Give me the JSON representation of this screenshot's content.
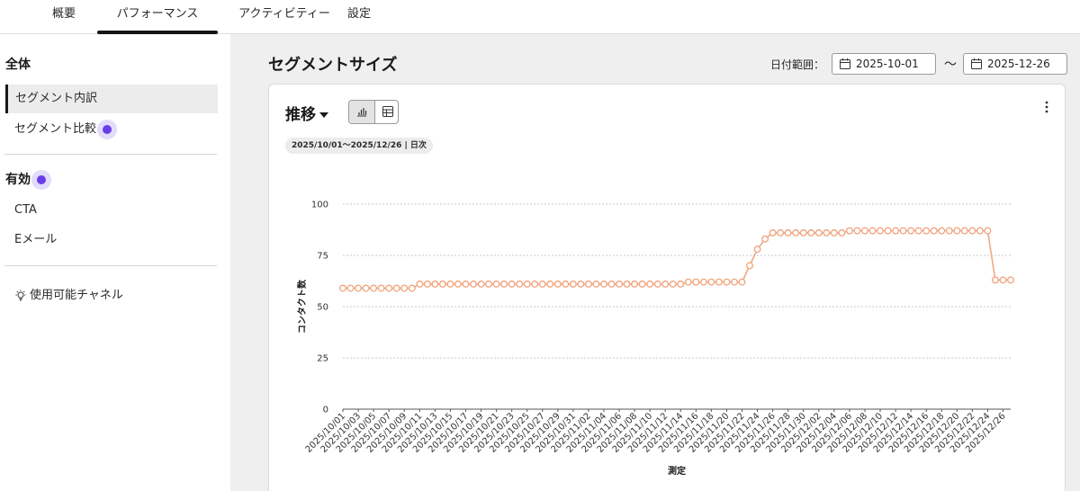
{
  "tabs": [
    {
      "label": "概要",
      "active": false
    },
    {
      "label": "パフォーマンス",
      "active": true
    },
    {
      "label": "アクティビティー",
      "active": false
    },
    {
      "label": "設定",
      "active": false
    }
  ],
  "sidebar": {
    "section_all": "全体",
    "item_breakdown": "セグメント内訳",
    "item_compare": "セグメント比較",
    "section_active": "有効",
    "item_cta": "CTA",
    "item_email": "Eメール",
    "item_channels": "使用可能チャネル"
  },
  "main": {
    "title": "セグメントサイズ",
    "date_range_label": "日付範囲：",
    "date_from": "2025-10-01",
    "date_separator": "〜",
    "date_to": "2025-12-26"
  },
  "card": {
    "title": "推移",
    "range_chip": "2025/10/01〜2025/12/26 | 日次"
  },
  "icons": {
    "calendar": "calendar-icon",
    "chart_view": "line-chart-icon",
    "table_view": "table-icon",
    "more": "more-vertical-icon",
    "bulb": "lightbulb-icon"
  },
  "colors": {
    "series": "#f0a882",
    "badge": "#6a3ce8",
    "badge_halo": "#e2dbfb"
  },
  "chart_data": {
    "type": "line",
    "xlabel": "測定",
    "ylabel": "コンタクト数",
    "ylim": [
      0,
      100
    ],
    "yticks": [
      0,
      25,
      50,
      75,
      100
    ],
    "grid": true,
    "x_tick_labels": [
      "2025/10/01",
      "2025/10/03",
      "2025/10/05",
      "2025/10/07",
      "2025/10/09",
      "2025/10/11",
      "2025/10/13",
      "2025/10/15",
      "2025/10/17",
      "2025/10/19",
      "2025/10/21",
      "2025/10/23",
      "2025/10/25",
      "2025/10/27",
      "2025/10/29",
      "2025/10/31",
      "2025/11/02",
      "2025/11/04",
      "2025/11/06",
      "2025/11/08",
      "2025/11/10",
      "2025/11/12",
      "2025/11/14",
      "2025/11/16",
      "2025/11/18",
      "2025/11/20",
      "2025/11/22",
      "2025/11/24",
      "2025/11/26",
      "2025/11/28",
      "2025/11/30",
      "2025/12/02",
      "2025/12/04",
      "2025/12/06",
      "2025/12/08",
      "2025/12/10",
      "2025/12/12",
      "2025/12/14",
      "2025/12/16",
      "2025/12/18",
      "2025/12/20",
      "2025/12/22",
      "2025/12/24",
      "2025/12/26"
    ],
    "x_start": "2025/10/01",
    "values": [
      59,
      59,
      59,
      59,
      59,
      59,
      59,
      59,
      59,
      59,
      61,
      61,
      61,
      61,
      61,
      61,
      61,
      61,
      61,
      61,
      61,
      61,
      61,
      61,
      61,
      61,
      61,
      61,
      61,
      61,
      61,
      61,
      61,
      61,
      61,
      61,
      61,
      61,
      61,
      61,
      61,
      61,
      61,
      61,
      61,
      62,
      62,
      62,
      62,
      62,
      62,
      62,
      62,
      70,
      78,
      83,
      86,
      86,
      86,
      86,
      86,
      86,
      86,
      86,
      86,
      86,
      87,
      87,
      87,
      87,
      87,
      87,
      87,
      87,
      87,
      87,
      87,
      87,
      87,
      87,
      87,
      87,
      87,
      87,
      87,
      63,
      63,
      63
    ]
  }
}
